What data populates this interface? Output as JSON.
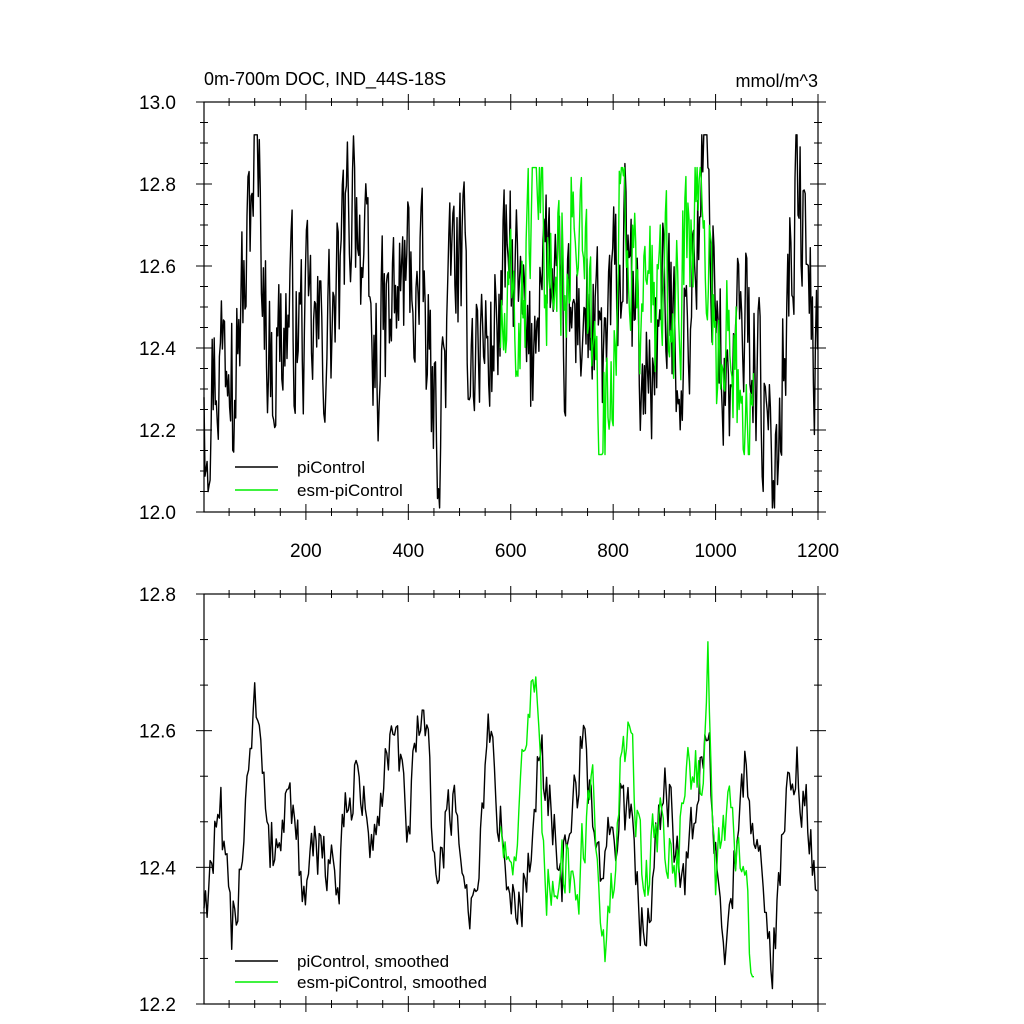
{
  "figure": {
    "left_title": "0m-700m DOC, IND_44S-18S",
    "right_title": "mmol/m^3"
  },
  "chart_data": [
    {
      "type": "line",
      "title": "0m-700m DOC, IND_44S-18S",
      "units": "mmol/m^3",
      "xlabel": "",
      "ylabel": "",
      "xlim": [
        1,
        1200
      ],
      "ylim": [
        12.0,
        13.0
      ],
      "xticks": [
        200,
        400,
        600,
        800,
        1000,
        1200
      ],
      "yticks": [
        12.0,
        12.2,
        12.4,
        12.6,
        12.8,
        13.0
      ],
      "ytick_labels": [
        "12.0",
        "12.2",
        "12.4",
        "12.6",
        "12.8",
        "13.0"
      ],
      "grid": false,
      "legend_position": "bottom-left",
      "series": [
        {
          "name": "piControl",
          "color": "#000000",
          "x": [
            1,
            30,
            55,
            82,
            100,
            130,
            165,
            200,
            230,
            262,
            295,
            330,
            365,
            400,
            430,
            455,
            490,
            520,
            560,
            600,
            640,
            660,
            700,
            740,
            780,
            820,
            860,
            900,
            940,
            980,
            1020,
            1060,
            1090,
            1110,
            1130,
            1160,
            1200
          ],
          "y": [
            12.28,
            12.38,
            12.46,
            12.55,
            12.92,
            12.36,
            12.48,
            12.43,
            12.41,
            12.5,
            12.84,
            12.36,
            12.47,
            12.59,
            12.48,
            12.17,
            12.64,
            12.44,
            12.4,
            12.62,
            12.32,
            12.7,
            12.4,
            12.5,
            12.36,
            12.64,
            12.3,
            12.5,
            12.4,
            12.86,
            12.26,
            12.5,
            12.3,
            12.01,
            12.4,
            12.82,
            12.3
          ],
          "y_range_observed": [
            12.01,
            12.92
          ]
        },
        {
          "name": "esm-piControl",
          "color": "#00ee00",
          "x": [
            580,
            620,
            645,
            680,
            720,
            760,
            785,
            820,
            850,
            880,
            920,
            960,
            985,
            1010,
            1040,
            1075
          ],
          "y": [
            12.4,
            12.5,
            12.83,
            12.55,
            12.72,
            12.4,
            12.16,
            12.82,
            12.44,
            12.56,
            12.44,
            12.84,
            12.66,
            12.3,
            12.5,
            12.14
          ],
          "y_range_observed": [
            12.14,
            12.84
          ]
        }
      ]
    },
    {
      "type": "line",
      "title": "",
      "xlabel": "",
      "ylabel": "",
      "xlim": [
        1,
        1200
      ],
      "ylim": [
        12.2,
        12.8
      ],
      "yticks": [
        12.2,
        12.4,
        12.6,
        12.8
      ],
      "ytick_labels": [
        "12.2",
        "12.4",
        "12.6",
        "12.8"
      ],
      "grid": false,
      "legend_position": "bottom-left",
      "series": [
        {
          "name": "piControl, smoothed",
          "color": "#000000",
          "x": [
            1,
            30,
            55,
            82,
            100,
            130,
            165,
            200,
            230,
            262,
            295,
            330,
            365,
            400,
            430,
            455,
            490,
            520,
            560,
            600,
            640,
            660,
            700,
            740,
            780,
            820,
            860,
            900,
            940,
            980,
            1020,
            1060,
            1090,
            1110,
            1130,
            1160,
            1200
          ],
          "y": [
            12.34,
            12.48,
            12.28,
            12.5,
            12.67,
            12.4,
            12.52,
            12.34,
            12.45,
            12.37,
            12.55,
            12.42,
            12.6,
            12.46,
            12.63,
            12.38,
            12.52,
            12.31,
            12.59,
            12.33,
            12.41,
            12.6,
            12.35,
            12.58,
            12.38,
            12.52,
            12.3,
            12.55,
            12.36,
            12.6,
            12.28,
            12.55,
            12.4,
            12.21,
            12.46,
            12.58,
            12.33
          ],
          "y_range_observed": [
            12.21,
            12.67
          ]
        },
        {
          "name": "esm-piControl, smoothed",
          "color": "#00ee00",
          "x": [
            580,
            600,
            620,
            645,
            670,
            700,
            730,
            760,
            785,
            810,
            830,
            860,
            890,
            920,
            950,
            975,
            985,
            1000,
            1020,
            1050,
            1075
          ],
          "y": [
            12.46,
            12.4,
            12.54,
            12.67,
            12.33,
            12.44,
            12.36,
            12.55,
            12.25,
            12.47,
            12.62,
            12.36,
            12.48,
            12.4,
            12.56,
            12.5,
            12.73,
            12.36,
            12.48,
            12.4,
            12.24
          ],
          "y_range_observed": [
            12.24,
            12.73
          ]
        }
      ]
    }
  ]
}
